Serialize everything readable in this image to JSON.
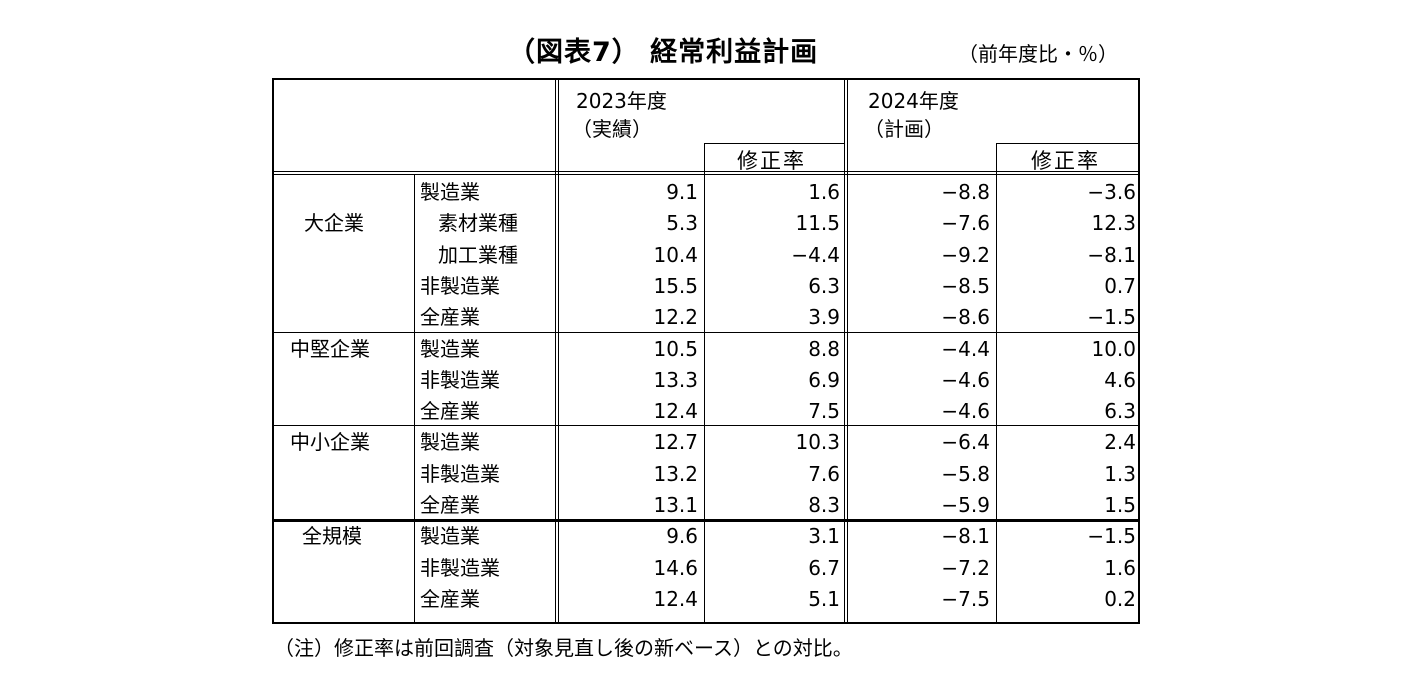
{
  "header": {
    "title": "（図表7） 経常利益計画",
    "unit": "（前年度比・％）"
  },
  "columns": {
    "fy2023_line1": "2023年度",
    "fy2023_line2": "（実績）",
    "fy2024_line1": "2024年度",
    "fy2024_line2": "（計画）",
    "revision_label_2023": "修正率",
    "revision_label_2024": "修正率"
  },
  "groups": [
    {
      "label": "大企業",
      "rows": [
        {
          "industry": "製造業",
          "indent": false,
          "fy2023": "9.1",
          "rev2023": "1.6",
          "fy2024": "−8.8",
          "rev2024": "−3.6"
        },
        {
          "industry": "素材業種",
          "indent": true,
          "fy2023": "5.3",
          "rev2023": "11.5",
          "fy2024": "−7.6",
          "rev2024": "12.3"
        },
        {
          "industry": "加工業種",
          "indent": true,
          "fy2023": "10.4",
          "rev2023": "−4.4",
          "fy2024": "−9.2",
          "rev2024": "−8.1"
        },
        {
          "industry": "非製造業",
          "indent": false,
          "fy2023": "15.5",
          "rev2023": "6.3",
          "fy2024": "−8.5",
          "rev2024": "0.7"
        },
        {
          "industry": "全産業",
          "indent": false,
          "fy2023": "12.2",
          "rev2023": "3.9",
          "fy2024": "−8.6",
          "rev2024": "−1.5"
        }
      ]
    },
    {
      "label": "中堅企業",
      "rows": [
        {
          "industry": "製造業",
          "indent": false,
          "fy2023": "10.5",
          "rev2023": "8.8",
          "fy2024": "−4.4",
          "rev2024": "10.0"
        },
        {
          "industry": "非製造業",
          "indent": false,
          "fy2023": "13.3",
          "rev2023": "6.9",
          "fy2024": "−4.6",
          "rev2024": "4.6"
        },
        {
          "industry": "全産業",
          "indent": false,
          "fy2023": "12.4",
          "rev2023": "7.5",
          "fy2024": "−4.6",
          "rev2024": "6.3"
        }
      ]
    },
    {
      "label": "中小企業",
      "rows": [
        {
          "industry": "製造業",
          "indent": false,
          "fy2023": "12.7",
          "rev2023": "10.3",
          "fy2024": "−6.4",
          "rev2024": "2.4"
        },
        {
          "industry": "非製造業",
          "indent": false,
          "fy2023": "13.2",
          "rev2023": "7.6",
          "fy2024": "−5.8",
          "rev2024": "1.3"
        },
        {
          "industry": "全産業",
          "indent": false,
          "fy2023": "13.1",
          "rev2023": "8.3",
          "fy2024": "−5.9",
          "rev2024": "1.5"
        }
      ]
    },
    {
      "label": "全規模",
      "rows": [
        {
          "industry": "製造業",
          "indent": false,
          "fy2023": "9.6",
          "rev2023": "3.1",
          "fy2024": "−8.1",
          "rev2024": "−1.5"
        },
        {
          "industry": "非製造業",
          "indent": false,
          "fy2023": "14.6",
          "rev2023": "6.7",
          "fy2024": "−7.2",
          "rev2024": "1.6"
        },
        {
          "industry": "全産業",
          "indent": false,
          "fy2023": "12.4",
          "rev2023": "5.1",
          "fy2024": "−7.5",
          "rev2024": "0.2"
        }
      ]
    }
  ],
  "footnote": "（注）修正率は前回調査（対象見直し後の新ベース）との対比。"
}
